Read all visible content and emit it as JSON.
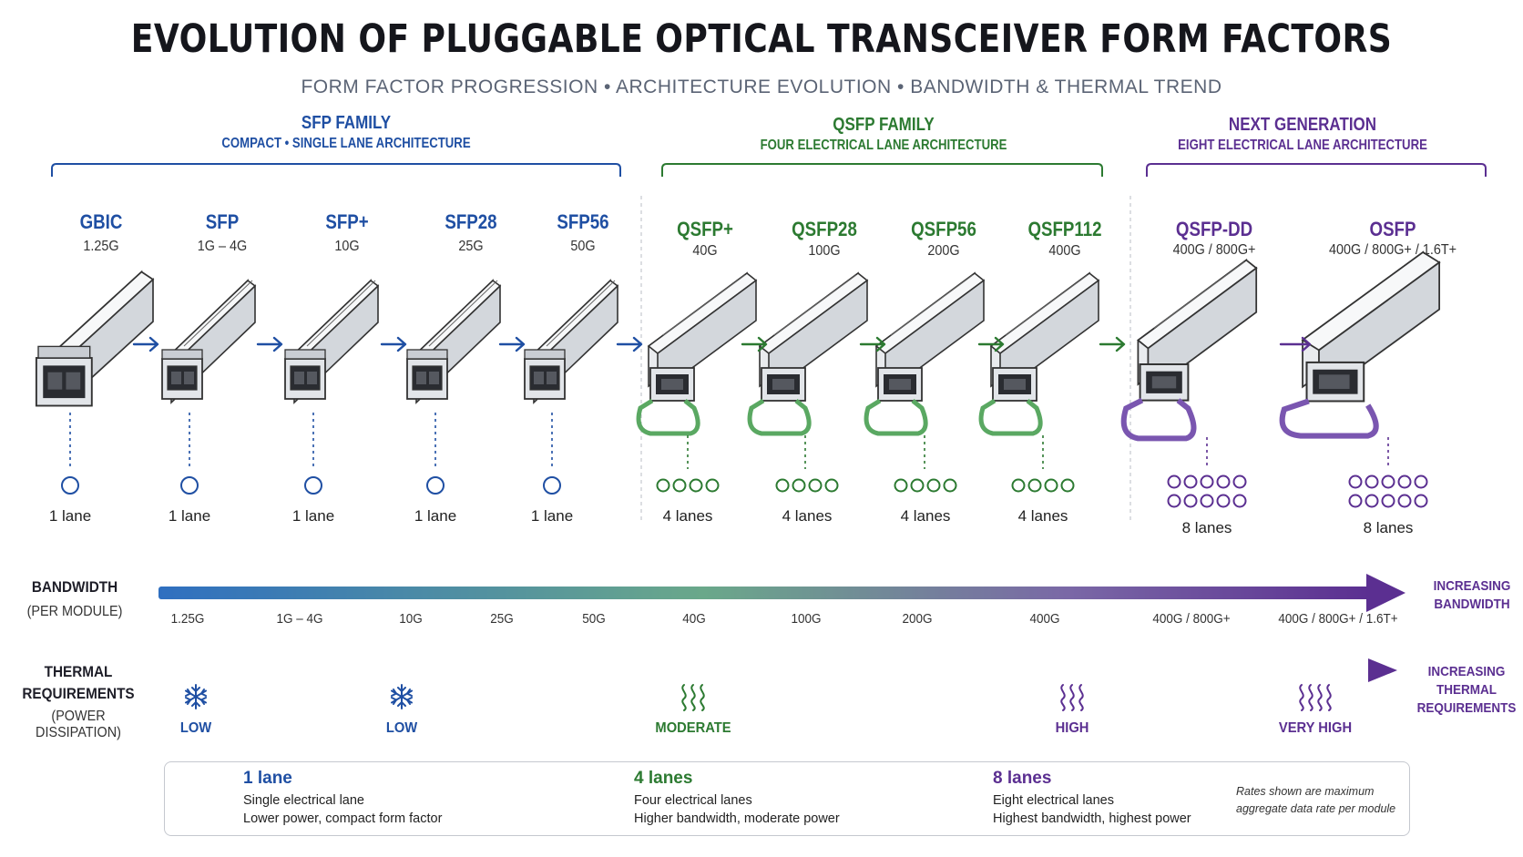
{
  "header": {
    "title": "EVOLUTION OF PLUGGABLE OPTICAL TRANSCEIVER FORM FACTORS",
    "subtitle": "FORM FACTOR PROGRESSION • ARCHITECTURE EVOLUTION • BANDWIDTH & THERMAL TREND"
  },
  "families": [
    {
      "title": "SFP FAMILY",
      "subtitle": "COMPACT • SINGLE LANE ARCHITECTURE",
      "color": "#1f4fa3"
    },
    {
      "title": "QSFP FAMILY",
      "subtitle": "FOUR ELECTRICAL LANE ARCHITECTURE",
      "color": "#2c7a31"
    },
    {
      "title": "NEXT GENERATION",
      "subtitle": "EIGHT ELECTRICAL LANE ARCHITECTURE",
      "color": "#5b2f91"
    }
  ],
  "modules": [
    {
      "name": "GBIC",
      "rate": "1.25G",
      "lanes": "1 lane"
    },
    {
      "name": "SFP",
      "rate": "1G – 4G",
      "lanes": "1 lane"
    },
    {
      "name": "SFP+",
      "rate": "10G",
      "lanes": "1 lane"
    },
    {
      "name": "SFP28",
      "rate": "25G",
      "lanes": "1 lane"
    },
    {
      "name": "SFP56",
      "rate": "50G",
      "lanes": "1 lane"
    },
    {
      "name": "QSFP+",
      "rate": "40G",
      "lanes": "4 lanes"
    },
    {
      "name": "QSFP28",
      "rate": "100G",
      "lanes": "4 lanes"
    },
    {
      "name": "QSFP56",
      "rate": "200G",
      "lanes": "4 lanes"
    },
    {
      "name": "QSFP112",
      "rate": "400G",
      "lanes": "4 lanes"
    },
    {
      "name": "QSFP-DD",
      "rate": "400G / 800G+",
      "lanes": "8 lanes"
    },
    {
      "name": "OSFP",
      "rate": "400G / 800G+ / 1.6T+",
      "lanes": "8 lanes"
    }
  ],
  "bandwidth": {
    "label": "BANDWIDTH",
    "sublabel": "(PER MODULE)",
    "ticks": [
      "1.25G",
      "1G – 4G",
      "10G",
      "25G",
      "50G",
      "40G",
      "100G",
      "200G",
      "400G",
      "400G / 800G+",
      "400G / 800G+ / 1.6T+"
    ],
    "trend_line1": "INCREASING",
    "trend_line2": "BANDWIDTH"
  },
  "thermal": {
    "label_line1": "THERMAL",
    "label_line2": "REQUIREMENTS",
    "sublabel": "(POWER DISSIPATION)",
    "levels": [
      {
        "label": "LOW",
        "icon": "snowflake-icon"
      },
      {
        "label": "LOW",
        "icon": "snowflake-icon"
      },
      {
        "label": "MODERATE",
        "icon": "heat-waves-icon"
      },
      {
        "label": "HIGH",
        "icon": "heat-waves-icon"
      },
      {
        "label": "VERY HIGH",
        "icon": "heat-waves-icon"
      }
    ],
    "trend_line1": "INCREASING",
    "trend_line2": "THERMAL",
    "trend_line3": "REQUIREMENTS"
  },
  "legend": {
    "items": [
      {
        "title": "1 lane",
        "line1": "Single electrical lane",
        "line2": "Lower power, compact form factor"
      },
      {
        "title": "4 lanes",
        "line1": "Four electrical lanes",
        "line2": "Higher bandwidth, moderate power"
      },
      {
        "title": "8 lanes",
        "line1": "Eight electrical lanes",
        "line2": "Highest bandwidth, highest power"
      }
    ],
    "note_line1": "Rates shown are maximum",
    "note_line2": "aggregate data rate per module"
  },
  "colors": {
    "sfp": "#1f4fa3",
    "qsfp": "#2c7a31",
    "nextgen": "#5b2f91",
    "bail_green": "#5aa862",
    "bail_purple": "#7a56b0"
  }
}
